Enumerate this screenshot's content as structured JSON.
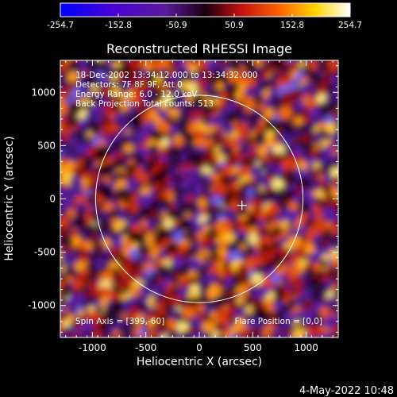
{
  "colorbar": {
    "min": -254.7,
    "max": 254.7,
    "tick_labels": [
      "-254.7",
      "-152.8",
      "-50.9",
      "50.9",
      "152.8",
      "254.7"
    ],
    "colormap": "blue-purple-red-yellow-white"
  },
  "chart_data": {
    "type": "heatmap",
    "title": "Reconstructed RHESSI Image",
    "xlabel": "Heliocentric X (arcsec)",
    "ylabel": "Heliocentric Y (arcsec)",
    "xlim": [
      -1300,
      1300
    ],
    "ylim": [
      -1300,
      1300
    ],
    "x_ticks": [
      -1000,
      -500,
      0,
      500,
      1000
    ],
    "y_ticks": [
      -1000,
      -500,
      0,
      500,
      1000
    ],
    "x_tick_labels": [
      "-1000",
      "-500",
      "0",
      "500",
      "1000"
    ],
    "y_tick_labels": [
      "-1000",
      "-500",
      "0",
      "500",
      "1000"
    ],
    "solar_disk_radius": 970,
    "solar_disk_center": [
      0,
      0
    ],
    "flare_marker": [
      399,
      -60
    ],
    "annotations": {
      "line1": "18-Dec-2002 13:34:12.000 to 13:34:32.000",
      "line2": "Detectors: 7F 8F 9F, Att 0",
      "line3": "Energy Range: 6.0 - 12.0 keV",
      "line4": "Back Projection    Total counts: 513",
      "spin_axis": "Spin Axis = [399,-60]",
      "flare_position": "Flare Position = [0,0]"
    }
  },
  "footer": {
    "timestamp": "4-May-2022 10:48"
  }
}
